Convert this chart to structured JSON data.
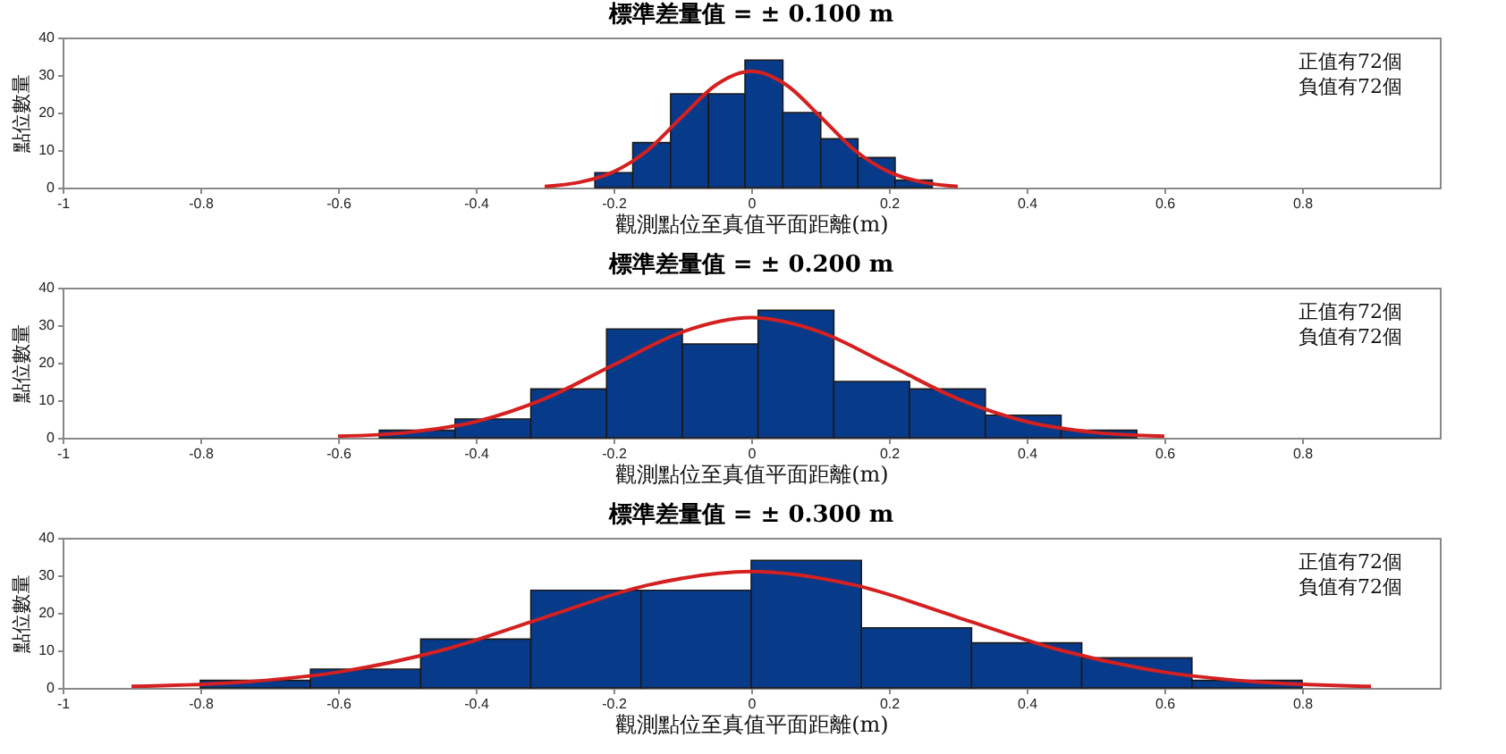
{
  "chart_data": [
    {
      "type": "histogram",
      "title": "標準差量值 = ± 0.100 m",
      "xlabel": "觀測點位至真值平面距離(m)",
      "ylabel": "點位數量",
      "annotations": [
        "正值有72個",
        "負值有72個"
      ],
      "xlim": [
        -1,
        1
      ],
      "xticks": [
        -1,
        -0.8,
        -0.6,
        -0.4,
        -0.2,
        0,
        0.2,
        0.4,
        0.6,
        0.8
      ],
      "ylim": [
        0,
        40
      ],
      "yticks": [
        0,
        10,
        20,
        30,
        40
      ],
      "bins": [
        -0.227,
        -0.172,
        -0.117,
        -0.062,
        -0.009,
        0.046,
        0.101,
        0.155,
        0.209,
        0.263
      ],
      "series": [
        {
          "type": "histogram",
          "color": "#083a8a",
          "values": [
            4,
            12,
            25,
            25,
            34,
            20,
            13,
            8,
            2
          ]
        },
        {
          "type": "line",
          "color": "#d42020",
          "x": [
            -0.3,
            -0.25,
            -0.2,
            -0.15,
            -0.1,
            -0.05,
            0,
            0.05,
            0.1,
            0.15,
            0.2,
            0.25,
            0.3
          ],
          "values": [
            0.3,
            1.4,
            4.2,
            10,
            19,
            27.5,
            31,
            27.5,
            19,
            10,
            4.2,
            1.4,
            0.3
          ]
        }
      ]
    },
    {
      "type": "histogram",
      "title": "標準差量值 = ± 0.200 m",
      "xlabel": "觀測點位至真值平面距離(m)",
      "ylabel": "點位數量",
      "annotations": [
        "正值有72個",
        "負值有72個"
      ],
      "xlim": [
        -1,
        1
      ],
      "xticks": [
        -1,
        -0.8,
        -0.6,
        -0.4,
        -0.2,
        0,
        0.2,
        0.4,
        0.6,
        0.8
      ],
      "ylim": [
        0,
        40
      ],
      "yticks": [
        0,
        10,
        20,
        30,
        40
      ],
      "bins": [
        -0.54,
        -0.43,
        -0.32,
        -0.21,
        -0.1,
        0.01,
        0.12,
        0.23,
        0.34,
        0.45,
        0.56
      ],
      "series": [
        {
          "type": "histogram",
          "color": "#083a8a",
          "values": [
            2,
            5,
            13,
            29,
            25,
            34,
            15,
            13,
            6,
            2
          ]
        },
        {
          "type": "line",
          "color": "#d42020",
          "x": [
            -0.6,
            -0.5,
            -0.4,
            -0.3,
            -0.2,
            -0.1,
            0,
            0.1,
            0.2,
            0.3,
            0.4,
            0.5,
            0.6
          ],
          "values": [
            0.4,
            1.4,
            4.3,
            10.4,
            19.4,
            28.2,
            32,
            28.2,
            19.4,
            10.4,
            4.3,
            1.4,
            0.4
          ]
        }
      ]
    },
    {
      "type": "histogram",
      "title": "標準差量值 = ± 0.300 m",
      "xlabel": "觀測點位至真值平面距離(m)",
      "ylabel": "點位數量",
      "annotations": [
        "正值有72個",
        "負值有72個"
      ],
      "xlim": [
        -1,
        1
      ],
      "xticks": [
        -1,
        -0.8,
        -0.6,
        -0.4,
        -0.2,
        0,
        0.2,
        0.4,
        0.6,
        0.8
      ],
      "ylim": [
        0,
        40
      ],
      "yticks": [
        0,
        10,
        20,
        30,
        40
      ],
      "bins": [
        -0.8,
        -0.64,
        -0.48,
        -0.32,
        -0.16,
        0,
        0.16,
        0.32,
        0.48,
        0.64,
        0.8
      ],
      "series": [
        {
          "type": "histogram",
          "color": "#083a8a",
          "values": [
            2,
            5,
            13,
            26,
            26,
            34,
            16,
            12,
            8,
            2
          ]
        },
        {
          "type": "line",
          "color": "#d42020",
          "x": [
            -0.9,
            -0.75,
            -0.6,
            -0.45,
            -0.3,
            -0.15,
            0,
            0.15,
            0.3,
            0.45,
            0.6,
            0.75,
            0.9
          ],
          "values": [
            0.4,
            1.4,
            4.2,
            10,
            18.8,
            27.4,
            31,
            27.4,
            18.8,
            10,
            4.2,
            1.4,
            0.4
          ]
        }
      ]
    }
  ]
}
